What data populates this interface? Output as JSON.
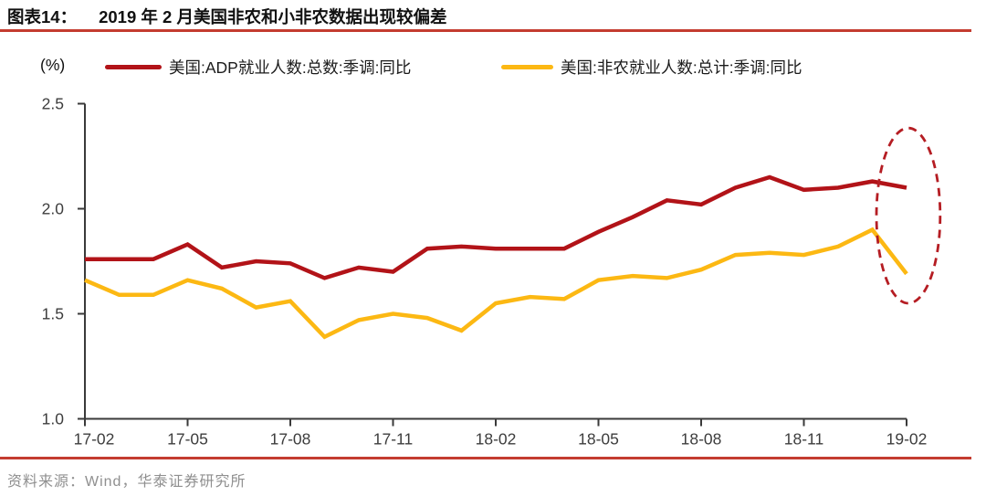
{
  "header": {
    "figure_label": "图表14：",
    "title": "2019 年 2 月美国非农和小非农数据出现较偏差"
  },
  "footer": {
    "source": "资料来源：Wind，华泰证券研究所"
  },
  "colors": {
    "adp_line": "#b21318",
    "nonfarm_line": "#fcb813",
    "highlight_ellipse": "#b51d23",
    "accent_rule": "#c43c30",
    "axis": "#3a3a3a",
    "tick_text": "#3d3d3d"
  },
  "chart_data": {
    "type": "line",
    "unit_label": "(%)",
    "x": [
      "17-02",
      "17-03",
      "17-04",
      "17-05",
      "17-06",
      "17-07",
      "17-08",
      "17-09",
      "17-10",
      "17-11",
      "17-12",
      "18-01",
      "18-02",
      "18-03",
      "18-04",
      "18-05",
      "18-06",
      "18-07",
      "18-08",
      "18-09",
      "18-10",
      "18-11",
      "18-12",
      "19-01",
      "19-02"
    ],
    "x_tick_labels": [
      "17-02",
      "17-05",
      "17-08",
      "17-11",
      "18-02",
      "18-05",
      "18-08",
      "18-11",
      "19-02"
    ],
    "x_tick_month_indices": [
      0,
      3,
      6,
      9,
      12,
      15,
      18,
      21,
      24
    ],
    "ylim": [
      1.0,
      2.5
    ],
    "yticks": [
      2.5,
      2.0,
      1.5,
      1.0
    ],
    "ytick_labels": [
      "2.5",
      "2.0",
      "1.5",
      "1.0"
    ],
    "grid": false,
    "legend_position": "top",
    "series": [
      {
        "name": "美国:ADP就业人数:总数:季调:同比",
        "color": "#b21318",
        "values": [
          1.76,
          1.76,
          1.76,
          1.83,
          1.72,
          1.75,
          1.74,
          1.67,
          1.72,
          1.7,
          1.81,
          1.82,
          1.81,
          1.81,
          1.81,
          1.89,
          1.96,
          2.04,
          2.02,
          2.1,
          2.15,
          2.09,
          2.1,
          2.13,
          2.1
        ]
      },
      {
        "name": "美国:非农就业人数:总计:季调:同比",
        "color": "#fcb813",
        "values": [
          1.66,
          1.59,
          1.59,
          1.66,
          1.62,
          1.53,
          1.56,
          1.39,
          1.47,
          1.5,
          1.48,
          1.42,
          1.55,
          1.58,
          1.57,
          1.66,
          1.68,
          1.67,
          1.71,
          1.78,
          1.79,
          1.78,
          1.82,
          1.9,
          1.69
        ]
      }
    ],
    "annotation": {
      "shape": "dashed-ellipse",
      "meaning": "highlights divergence of the two series at 19-02",
      "color": "#b51d23",
      "center_month_index": 24.05,
      "center_value": 1.967,
      "rx_months": 0.93,
      "ry_value": 0.417
    }
  }
}
